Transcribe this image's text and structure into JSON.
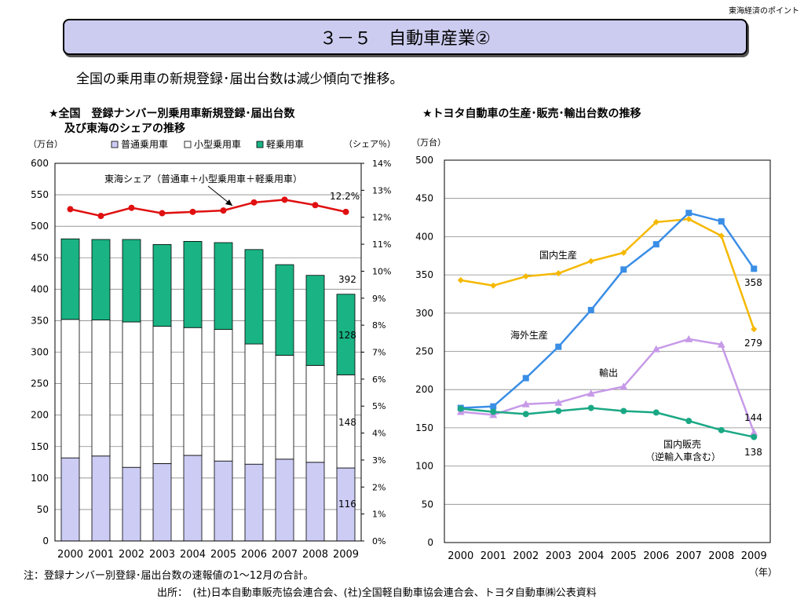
{
  "header": {
    "corner_label": "東海経済のポイント",
    "title": "３－５　自動車産業②",
    "subtitle": "全国の乗用車の新規登録･届出台数は減少傾向で推移。"
  },
  "left_chart_title_line1": "★全国　登録ナンバー別乗用車新規登録･届出台数",
  "left_chart_title_line2": "及び東海のシェアの推移",
  "right_chart_title": "★トヨタ自動車の生産･販売･輸出台数の推移",
  "note": "注：登録ナンバー別登録･届出台数の速報値の1～12月の合計。",
  "source": "出所：　(社)日本自動車販売協会連合会、(社)全国軽自動車協会連合会、トヨタ自動車㈱公表資料",
  "colors": {
    "futsu": "#ccccf5",
    "kogata": "#ffffff",
    "kei": "#1ab383",
    "share_line": "#e01010",
    "domestic_production": "#f5b800",
    "overseas_production": "#3a8ee6",
    "export": "#c79ae8",
    "domestic_sales": "#1aa884"
  },
  "chart_data": [
    {
      "type": "bar",
      "stacked": true,
      "categories": [
        "2000",
        "2001",
        "2002",
        "2003",
        "2004",
        "2005",
        "2006",
        "2007",
        "2008",
        "2009"
      ],
      "ylabel": "（万台）",
      "y2label": "（シェア％）",
      "ylim": [
        0,
        600
      ],
      "yticks": [
        0,
        50,
        100,
        150,
        200,
        250,
        300,
        350,
        400,
        450,
        500,
        550,
        600
      ],
      "y2lim": [
        0,
        14
      ],
      "y2ticks": [
        "0%",
        "1%",
        "2%",
        "3%",
        "4%",
        "5%",
        "6%",
        "7%",
        "8%",
        "9%",
        "10%",
        "11%",
        "12%",
        "13%",
        "14%"
      ],
      "grid": true,
      "series": [
        {
          "name": "普通乗用車",
          "values": [
            132,
            135,
            117,
            123,
            136,
            127,
            122,
            130,
            125,
            116
          ]
        },
        {
          "name": "小型乗用車",
          "values": [
            220,
            216,
            231,
            218,
            203,
            209,
            191,
            165,
            154,
            148
          ]
        },
        {
          "name": "軽乗用車",
          "values": [
            128,
            128,
            131,
            130,
            137,
            138,
            150,
            144,
            143,
            128
          ]
        }
      ],
      "share_series": {
        "name": "東海シェア（普通車＋小型乗用車＋軽乗用車）",
        "values": [
          12.3,
          12.05,
          12.35,
          12.15,
          12.2,
          12.25,
          12.55,
          12.65,
          12.45,
          12.2
        ]
      },
      "annotations": {
        "share_last": "12.2%",
        "total_last": "392",
        "kei_last": "128",
        "kogata_last": "148",
        "futsu_last": "116"
      },
      "legend_position": "top"
    },
    {
      "type": "line",
      "x": [
        "2000",
        "2001",
        "2002",
        "2003",
        "2004",
        "2005",
        "2006",
        "2007",
        "2008",
        "2009"
      ],
      "ylabel": "（万台）",
      "xlabel": "（年）",
      "ylim": [
        0,
        500
      ],
      "yticks": [
        0,
        50,
        100,
        150,
        200,
        250,
        300,
        350,
        400,
        450,
        500
      ],
      "grid": true,
      "series": [
        {
          "name": "国内生産",
          "values": [
            343,
            336,
            348,
            352,
            368,
            379,
            419,
            423,
            401,
            279
          ]
        },
        {
          "name": "海外生産",
          "values": [
            176,
            178,
            215,
            256,
            304,
            357,
            390,
            431,
            420,
            358
          ]
        },
        {
          "name": "輸出",
          "values": [
            171,
            167,
            181,
            183,
            195,
            204,
            253,
            266,
            259,
            144
          ]
        },
        {
          "name": "国内販売（逆輸入車含む）",
          "values": [
            175,
            171,
            168,
            172,
            176,
            172,
            170,
            159,
            147,
            138
          ]
        }
      ],
      "end_labels": [
        "279",
        "358",
        "144",
        "138"
      ]
    }
  ]
}
